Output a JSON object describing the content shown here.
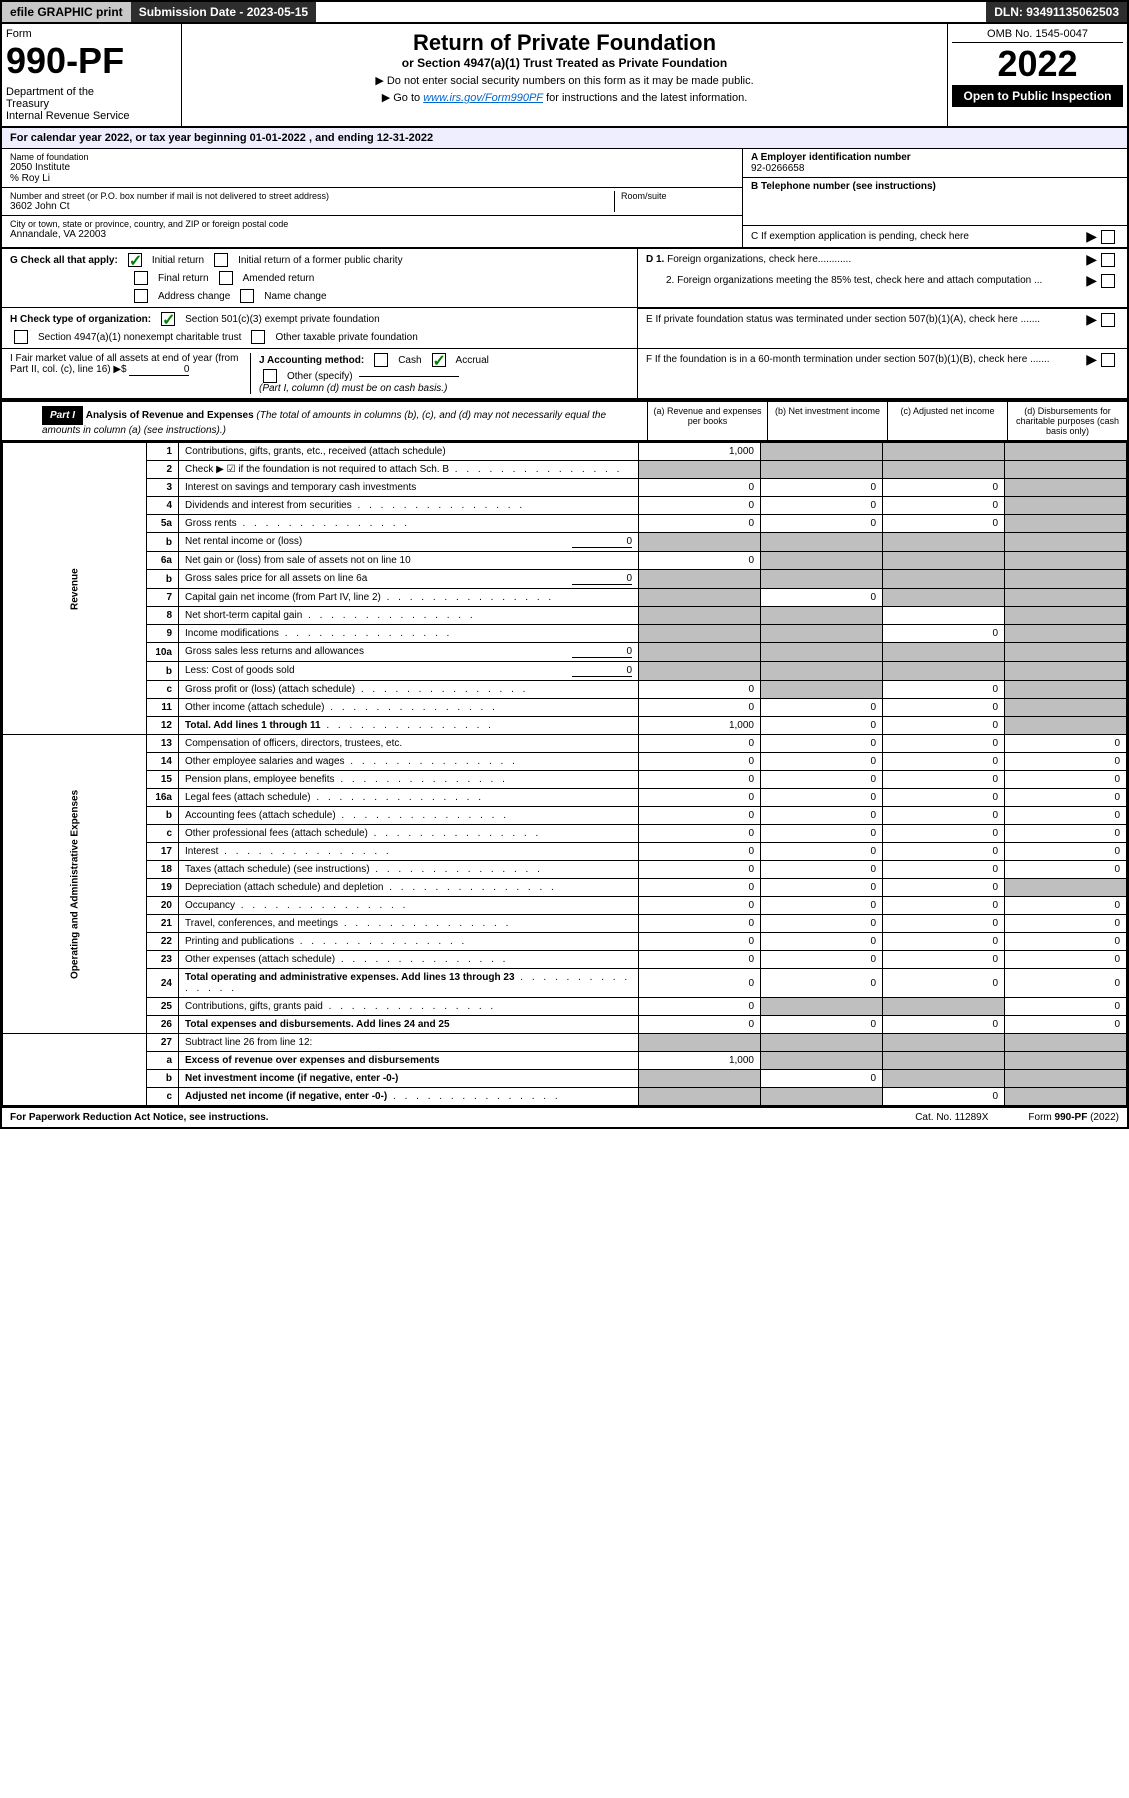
{
  "topbar": {
    "efile": "efile GRAPHIC print",
    "submission": "Submission Date - 2023-05-15",
    "dln": "DLN: 93491135062503"
  },
  "header": {
    "form_label": "Form",
    "form_no": "990-PF",
    "dept": "Department of the Treasury\nInternal Revenue Service",
    "title": "Return of Private Foundation",
    "subtitle": "or Section 4947(a)(1) Trust Treated as Private Foundation",
    "instr1": "▶ Do not enter social security numbers on this form as it may be made public.",
    "instr2_prefix": "▶ Go to ",
    "instr2_link": "www.irs.gov/Form990PF",
    "instr2_suffix": " for instructions and the latest information.",
    "omb": "OMB No. 1545-0047",
    "year": "2022",
    "inspection": "Open to Public Inspection"
  },
  "calendar": "For calendar year 2022, or tax year beginning 01-01-2022                           , and ending 12-31-2022",
  "entity": {
    "name_label": "Name of foundation",
    "name": "2050 Institute",
    "care_of": "% Roy Li",
    "addr_label": "Number and street (or P.O. box number if mail is not delivered to street address)",
    "room_label": "Room/suite",
    "addr": "3602 John Ct",
    "city_label": "City or town, state or province, country, and ZIP or foreign postal code",
    "city": "Annandale, VA  22003",
    "ein_label": "A Employer identification number",
    "ein": "92-0266658",
    "phone_label": "B Telephone number (see instructions)",
    "c_label": "C If exemption application is pending, check here",
    "d1_label": "D 1. Foreign organizations, check here............",
    "d2_label": "2. Foreign organizations meeting the 85% test, check here and attach computation ...",
    "e_label": "E  If private foundation status was terminated under section 507(b)(1)(A), check here .......",
    "f_label": "F  If the foundation is in a 60-month termination under section 507(b)(1)(B), check here .......",
    "g_label": "G Check all that apply:",
    "g_opts": [
      "Initial return",
      "Initial return of a former public charity",
      "Final return",
      "Amended return",
      "Address change",
      "Name change"
    ],
    "h_label": "H Check type of organization:",
    "h_opts": [
      "Section 501(c)(3) exempt private foundation",
      "Section 4947(a)(1) nonexempt charitable trust",
      "Other taxable private foundation"
    ],
    "i_label": "I Fair market value of all assets at end of year (from Part II, col. (c), line 16) ▶$",
    "i_val": "0",
    "j_label": "J Accounting method:",
    "j_opts": [
      "Cash",
      "Accrual"
    ],
    "j_other": "Other (specify)",
    "j_note": "(Part I, column (d) must be on cash basis.)"
  },
  "part1": {
    "label": "Part I",
    "title": "Analysis of Revenue and Expenses",
    "note": "(The total of amounts in columns (b), (c), and (d) may not necessarily equal the amounts in column (a) (see instructions).)",
    "cols": {
      "a": "(a)   Revenue and expenses per books",
      "b": "(b)   Net investment income",
      "c": "(c)   Adjusted net income",
      "d": "(d)   Disbursements for charitable purposes (cash basis only)"
    }
  },
  "sections": {
    "revenue": "Revenue",
    "expenses": "Operating and Administrative Expenses"
  },
  "lines": [
    {
      "sec": "rev",
      "no": "1",
      "desc": "Contributions, gifts, grants, etc., received (attach schedule)",
      "a": "1,000",
      "b": "",
      "c": "",
      "d": "",
      "shade_b": true,
      "shade_c": true,
      "shade_d": true
    },
    {
      "sec": "rev",
      "no": "2",
      "desc": "Check ▶ ☑ if the foundation is not required to attach Sch. B",
      "dots": true,
      "a": "",
      "b": "",
      "c": "",
      "d": "",
      "shade_a": true,
      "shade_b": true,
      "shade_c": true,
      "shade_d": true,
      "bold_not": true
    },
    {
      "sec": "rev",
      "no": "3",
      "desc": "Interest on savings and temporary cash investments",
      "a": "0",
      "b": "0",
      "c": "0",
      "d": "",
      "shade_d": true
    },
    {
      "sec": "rev",
      "no": "4",
      "desc": "Dividends and interest from securities",
      "dots": true,
      "a": "0",
      "b": "0",
      "c": "0",
      "d": "",
      "shade_d": true
    },
    {
      "sec": "rev",
      "no": "5a",
      "desc": "Gross rents",
      "dots": true,
      "a": "0",
      "b": "0",
      "c": "0",
      "d": "",
      "shade_d": true
    },
    {
      "sec": "rev",
      "no": "b",
      "desc": "Net rental income or (loss)",
      "inline_val": "0",
      "a": "",
      "b": "",
      "c": "",
      "d": "",
      "shade_a": true,
      "shade_b": true,
      "shade_c": true,
      "shade_d": true
    },
    {
      "sec": "rev",
      "no": "6a",
      "desc": "Net gain or (loss) from sale of assets not on line 10",
      "a": "0",
      "b": "",
      "c": "",
      "d": "",
      "shade_b": true,
      "shade_c": true,
      "shade_d": true
    },
    {
      "sec": "rev",
      "no": "b",
      "desc": "Gross sales price for all assets on line 6a",
      "inline_val": "0",
      "a": "",
      "b": "",
      "c": "",
      "d": "",
      "shade_a": true,
      "shade_b": true,
      "shade_c": true,
      "shade_d": true
    },
    {
      "sec": "rev",
      "no": "7",
      "desc": "Capital gain net income (from Part IV, line 2)",
      "dots": true,
      "a": "",
      "b": "0",
      "c": "",
      "d": "",
      "shade_a": true,
      "shade_c": true,
      "shade_d": true
    },
    {
      "sec": "rev",
      "no": "8",
      "desc": "Net short-term capital gain",
      "dots": true,
      "a": "",
      "b": "",
      "c": "",
      "d": "",
      "shade_a": true,
      "shade_b": true,
      "shade_d": true
    },
    {
      "sec": "rev",
      "no": "9",
      "desc": "Income modifications",
      "dots": true,
      "a": "",
      "b": "",
      "c": "0",
      "d": "",
      "shade_a": true,
      "shade_b": true,
      "shade_d": true
    },
    {
      "sec": "rev",
      "no": "10a",
      "desc": "Gross sales less returns and allowances",
      "inline_val": "0",
      "a": "",
      "b": "",
      "c": "",
      "d": "",
      "shade_a": true,
      "shade_b": true,
      "shade_c": true,
      "shade_d": true
    },
    {
      "sec": "rev",
      "no": "b",
      "desc": "Less: Cost of goods sold",
      "dots": true,
      "inline_val": "0",
      "a": "",
      "b": "",
      "c": "",
      "d": "",
      "shade_a": true,
      "shade_b": true,
      "shade_c": true,
      "shade_d": true
    },
    {
      "sec": "rev",
      "no": "c",
      "desc": "Gross profit or (loss) (attach schedule)",
      "dots": true,
      "a": "0",
      "b": "",
      "c": "0",
      "d": "",
      "shade_b": true,
      "shade_d": true
    },
    {
      "sec": "rev",
      "no": "11",
      "desc": "Other income (attach schedule)",
      "dots": true,
      "a": "0",
      "b": "0",
      "c": "0",
      "d": "",
      "shade_d": true
    },
    {
      "sec": "rev",
      "no": "12",
      "desc": "Total. Add lines 1 through 11",
      "dots": true,
      "bold": true,
      "a": "1,000",
      "b": "0",
      "c": "0",
      "d": "",
      "shade_d": true
    },
    {
      "sec": "exp",
      "no": "13",
      "desc": "Compensation of officers, directors, trustees, etc.",
      "a": "0",
      "b": "0",
      "c": "0",
      "d": "0"
    },
    {
      "sec": "exp",
      "no": "14",
      "desc": "Other employee salaries and wages",
      "dots": true,
      "a": "0",
      "b": "0",
      "c": "0",
      "d": "0"
    },
    {
      "sec": "exp",
      "no": "15",
      "desc": "Pension plans, employee benefits",
      "dots": true,
      "a": "0",
      "b": "0",
      "c": "0",
      "d": "0"
    },
    {
      "sec": "exp",
      "no": "16a",
      "desc": "Legal fees (attach schedule)",
      "dots": true,
      "a": "0",
      "b": "0",
      "c": "0",
      "d": "0"
    },
    {
      "sec": "exp",
      "no": "b",
      "desc": "Accounting fees (attach schedule)",
      "dots": true,
      "a": "0",
      "b": "0",
      "c": "0",
      "d": "0"
    },
    {
      "sec": "exp",
      "no": "c",
      "desc": "Other professional fees (attach schedule)",
      "dots": true,
      "a": "0",
      "b": "0",
      "c": "0",
      "d": "0"
    },
    {
      "sec": "exp",
      "no": "17",
      "desc": "Interest",
      "dots": true,
      "a": "0",
      "b": "0",
      "c": "0",
      "d": "0"
    },
    {
      "sec": "exp",
      "no": "18",
      "desc": "Taxes (attach schedule) (see instructions)",
      "dots": true,
      "a": "0",
      "b": "0",
      "c": "0",
      "d": "0"
    },
    {
      "sec": "exp",
      "no": "19",
      "desc": "Depreciation (attach schedule) and depletion",
      "dots": true,
      "a": "0",
      "b": "0",
      "c": "0",
      "d": "",
      "shade_d": true
    },
    {
      "sec": "exp",
      "no": "20",
      "desc": "Occupancy",
      "dots": true,
      "a": "0",
      "b": "0",
      "c": "0",
      "d": "0"
    },
    {
      "sec": "exp",
      "no": "21",
      "desc": "Travel, conferences, and meetings",
      "dots": true,
      "a": "0",
      "b": "0",
      "c": "0",
      "d": "0"
    },
    {
      "sec": "exp",
      "no": "22",
      "desc": "Printing and publications",
      "dots": true,
      "a": "0",
      "b": "0",
      "c": "0",
      "d": "0"
    },
    {
      "sec": "exp",
      "no": "23",
      "desc": "Other expenses (attach schedule)",
      "dots": true,
      "a": "0",
      "b": "0",
      "c": "0",
      "d": "0"
    },
    {
      "sec": "exp",
      "no": "24",
      "desc": "Total operating and administrative expenses. Add lines 13 through 23",
      "dots": true,
      "bold": true,
      "a": "0",
      "b": "0",
      "c": "0",
      "d": "0"
    },
    {
      "sec": "exp",
      "no": "25",
      "desc": "Contributions, gifts, grants paid",
      "dots": true,
      "a": "0",
      "b": "",
      "c": "",
      "d": "0",
      "shade_b": true,
      "shade_c": true
    },
    {
      "sec": "exp",
      "no": "26",
      "desc": "Total expenses and disbursements. Add lines 24 and 25",
      "bold": true,
      "a": "0",
      "b": "0",
      "c": "0",
      "d": "0"
    },
    {
      "sec": "sum",
      "no": "27",
      "desc": "Subtract line 26 from line 12:",
      "a": "",
      "b": "",
      "c": "",
      "d": "",
      "shade_a": true,
      "shade_b": true,
      "shade_c": true,
      "shade_d": true
    },
    {
      "sec": "sum",
      "no": "a",
      "desc": "Excess of revenue over expenses and disbursements",
      "bold": true,
      "a": "1,000",
      "b": "",
      "c": "",
      "d": "",
      "shade_b": true,
      "shade_c": true,
      "shade_d": true
    },
    {
      "sec": "sum",
      "no": "b",
      "desc": "Net investment income (if negative, enter -0-)",
      "bold": true,
      "a": "",
      "b": "0",
      "c": "",
      "d": "",
      "shade_a": true,
      "shade_c": true,
      "shade_d": true
    },
    {
      "sec": "sum",
      "no": "c",
      "desc": "Adjusted net income (if negative, enter -0-)",
      "dots": true,
      "bold": true,
      "a": "",
      "b": "",
      "c": "0",
      "d": "",
      "shade_a": true,
      "shade_b": true,
      "shade_d": true
    }
  ],
  "footer": {
    "note": "For Paperwork Reduction Act Notice, see instructions.",
    "cat": "Cat. No. 11289X",
    "formref": "Form 990-PF (2022)"
  },
  "colors": {
    "shade": "#bfbfbf",
    "link": "#0066cc",
    "check": "#008000"
  }
}
